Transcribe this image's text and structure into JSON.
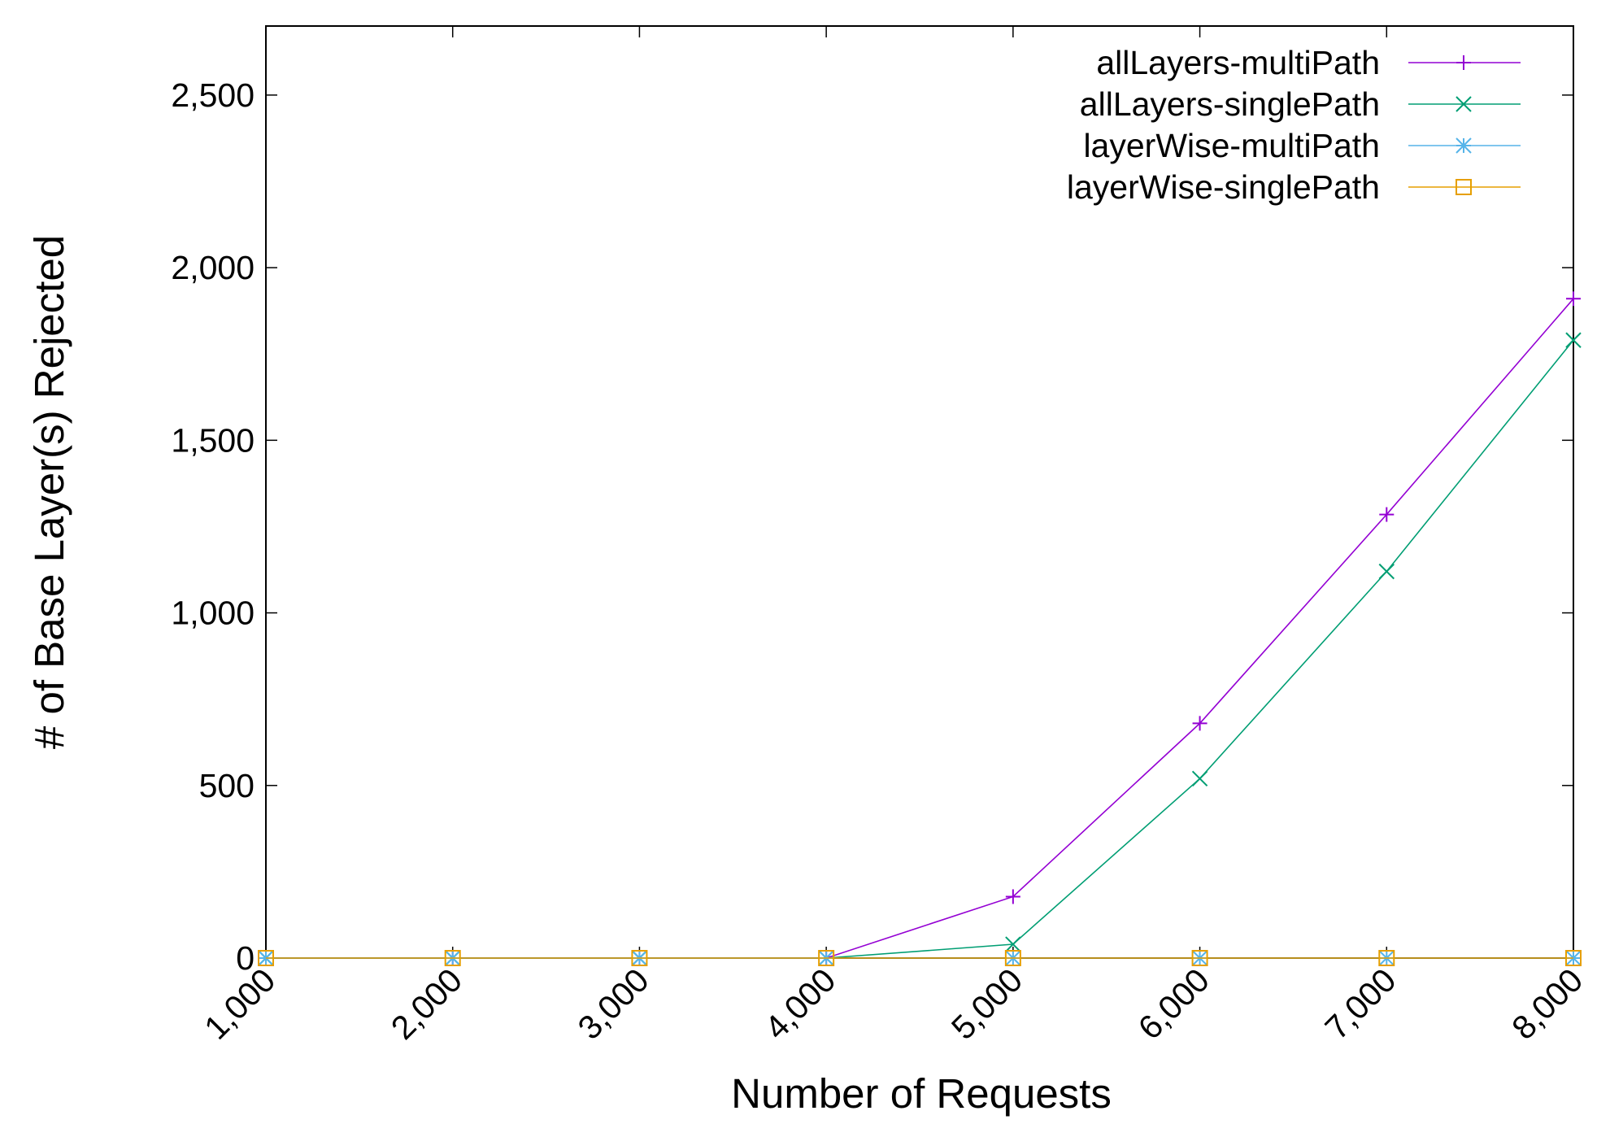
{
  "chart_data": {
    "type": "line",
    "x_label": "Number of Requests",
    "y_label": "# of Base Layer(s) Rejected",
    "x": [
      1000,
      2000,
      3000,
      4000,
      5000,
      6000,
      7000,
      8000
    ],
    "xlim": [
      1000,
      8000
    ],
    "xticks": [
      {
        "value": 1000,
        "label": "1,000"
      },
      {
        "value": 2000,
        "label": "2,000"
      },
      {
        "value": 3000,
        "label": "3,000"
      },
      {
        "value": 4000,
        "label": "4,000"
      },
      {
        "value": 5000,
        "label": "5,000"
      },
      {
        "value": 6000,
        "label": "6,000"
      },
      {
        "value": 7000,
        "label": "7,000"
      },
      {
        "value": 8000,
        "label": "8,000"
      }
    ],
    "ylim": [
      0,
      2700
    ],
    "yticks": [
      0,
      500,
      {
        "value": 1000,
        "label": "1,000"
      },
      {
        "value": 1500,
        "label": "1,500"
      },
      {
        "value": 2000,
        "label": "2,000"
      },
      {
        "value": 2500,
        "label": "2,500"
      }
    ],
    "legend": "top right",
    "series": [
      {
        "name": "allLayers-multiPath",
        "color": "#9400d3",
        "marker": "plus",
        "values": [
          0,
          0,
          0,
          0,
          178,
          680,
          1285,
          1910
        ]
      },
      {
        "name": "allLayers-singlePath",
        "color": "#009e73",
        "marker": "cross",
        "values": [
          0,
          0,
          0,
          0,
          40,
          520,
          1120,
          1790
        ]
      },
      {
        "name": "layerWise-multiPath",
        "color": "#56b4e9",
        "marker": "star",
        "values": [
          0,
          0,
          0,
          0,
          0,
          0,
          0,
          0
        ]
      },
      {
        "name": "layerWise-singlePath",
        "color": "#e69f00",
        "marker": "square",
        "values": [
          0,
          0,
          0,
          0,
          0,
          0,
          0,
          0
        ]
      }
    ]
  }
}
